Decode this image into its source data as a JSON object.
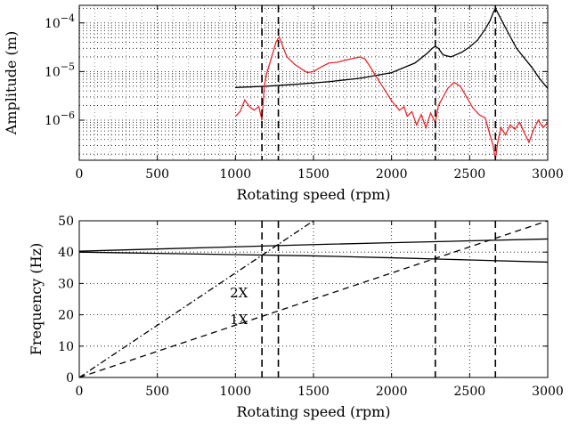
{
  "chart_data": [
    {
      "type": "line",
      "xlabel": "Rotating speed (rpm)",
      "ylabel": "Amplitude (m)",
      "yscale": "log",
      "xlim": [
        0,
        3000
      ],
      "ylim": [
        1.5e-07,
        0.00023
      ],
      "x_ticks": [
        "0",
        "500",
        "1000",
        "1500",
        "2000",
        "2500",
        "3000"
      ],
      "y_ticks": [
        {
          "value": 1e-06,
          "base": "10",
          "exp": "−6"
        },
        {
          "value": 1e-05,
          "base": "10",
          "exp": "−5"
        },
        {
          "value": 0.0001,
          "base": "10",
          "exp": "−4"
        }
      ],
      "grid": true,
      "critical_speeds": [
        1170,
        1275,
        2280,
        2665
      ],
      "series": [
        {
          "color": "#000000",
          "x": [
            1000,
            1200,
            1400,
            1600,
            1800,
            2000,
            2150,
            2230,
            2260,
            2280,
            2300,
            2330,
            2380,
            2450,
            2500,
            2550,
            2600,
            2630,
            2650,
            2665,
            2690,
            2750,
            2800,
            2900,
            2950,
            3000
          ],
          "y": [
            4.7e-06,
            5e-06,
            5.5e-06,
            6.2e-06,
            7.3e-06,
            9.5e-06,
            1.5e-05,
            2.4e-05,
            3e-05,
            3.3e-05,
            3e-05,
            2.2e-05,
            2e-05,
            2.5e-05,
            3.2e-05,
            4.4e-05,
            7.5e-05,
            0.00011,
            0.00016,
            0.0002,
            0.00014,
            6e-05,
            3e-05,
            1.2e-05,
            7e-06,
            4.5e-06
          ]
        },
        {
          "color": "#e8262d",
          "x": [
            1000,
            1030,
            1060,
            1090,
            1120,
            1150,
            1170,
            1185,
            1200,
            1230,
            1260,
            1280,
            1300,
            1330,
            1380,
            1420,
            1460,
            1500,
            1550,
            1600,
            1650,
            1700,
            1750,
            1800,
            1830,
            1860,
            1900,
            1950,
            2000,
            2050,
            2080,
            2100,
            2130,
            2160,
            2190,
            2220,
            2250,
            2280,
            2300,
            2330,
            2360,
            2400,
            2440,
            2480,
            2520,
            2560,
            2600,
            2630,
            2650,
            2665,
            2680,
            2700,
            2730,
            2760,
            2790,
            2820,
            2850,
            2880,
            2910,
            2940,
            2970,
            3000
          ],
          "y": [
            1.2e-06,
            1.5e-06,
            2.6e-06,
            1.9e-06,
            1.6e-06,
            1.9e-06,
            1e-06,
            5e-06,
            9e-06,
            1.9e-05,
            4e-05,
            5.2e-05,
            3.5e-05,
            2e-05,
            1.4e-05,
            1.15e-05,
            9.5e-06,
            1e-05,
            1.25e-05,
            1.5e-05,
            1.55e-05,
            1.7e-05,
            1.85e-05,
            2e-05,
            1.8e-05,
            1.3e-05,
            8e-06,
            4.5e-06,
            2.5e-06,
            1.6e-06,
            1.9e-06,
            1.2e-06,
            1.5e-06,
            8e-07,
            1.3e-06,
            7e-07,
            1.4e-06,
            9e-07,
            2e-06,
            3e-06,
            4.5e-06,
            6e-06,
            5e-06,
            3e-06,
            1.8e-06,
            1.3e-06,
            1.1e-06,
            5e-07,
            3e-07,
            1.6e-07,
            3.5e-07,
            7e-07,
            5e-07,
            8e-07,
            6.5e-07,
            9e-07,
            5.5e-07,
            3.5e-07,
            6.5e-07,
            1e-06,
            7e-07,
            9e-07
          ]
        }
      ]
    },
    {
      "type": "line",
      "xlabel": "Rotating speed (rpm)",
      "ylabel": "Frequency (Hz)",
      "xlim": [
        0,
        3000
      ],
      "ylim": [
        0,
        50
      ],
      "x_ticks": [
        "0",
        "500",
        "1000",
        "1500",
        "2000",
        "2500",
        "3000"
      ],
      "y_ticks": [
        "0",
        "10",
        "20",
        "30",
        "40",
        "50"
      ],
      "grid": true,
      "critical_speeds": [
        1170,
        1275,
        2280,
        2665
      ],
      "annotations": [
        {
          "text": "2X",
          "x": 1080,
          "y": 25.5
        },
        {
          "text": "1X",
          "x": 1080,
          "y": 17
        }
      ],
      "series": [
        {
          "style": "solid",
          "x": [
            0,
            500,
            1000,
            1500,
            2000,
            2500,
            3000
          ],
          "y": [
            40.3,
            41.0,
            41.7,
            42.4,
            43.0,
            43.6,
            44.2
          ]
        },
        {
          "style": "solid",
          "x": [
            0,
            500,
            1000,
            1500,
            2000,
            2500,
            3000
          ],
          "y": [
            40.0,
            39.6,
            39.2,
            38.8,
            38.2,
            37.5,
            36.8
          ]
        },
        {
          "style": "dashed",
          "x": [
            0,
            3000
          ],
          "y": [
            0,
            50
          ]
        },
        {
          "style": "dashdot",
          "x": [
            0,
            1500
          ],
          "y": [
            0,
            50
          ]
        }
      ]
    }
  ]
}
